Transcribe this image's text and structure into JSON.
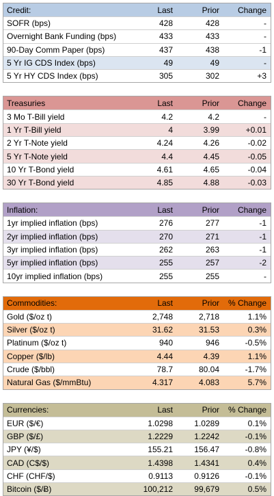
{
  "sections": [
    {
      "header": [
        "Credit:",
        "Last",
        "Prior",
        "Change"
      ],
      "rows": [
        [
          "SOFR (bps)",
          "428",
          "428",
          "-"
        ],
        [
          "Overnight Bank Funding (bps)",
          "433",
          "433",
          "-"
        ],
        [
          "90-Day Comm Paper (bps)",
          "437",
          "438",
          "-1"
        ],
        [
          "5 Yr IG CDS Index (bps)",
          "49",
          "49",
          "-"
        ],
        [
          "5 Yr HY CDS Index (bps)",
          "305",
          "302",
          "+3"
        ]
      ]
    },
    {
      "header": [
        "Treasuries",
        "Last",
        "Prior",
        "Change"
      ],
      "rows": [
        [
          "3 Mo T-Bill yield",
          "4.2",
          "4.2",
          "-"
        ],
        [
          "1 Yr T-Bill yield",
          "4",
          "3.99",
          "+0.01"
        ],
        [
          "2 Yr T-Note yield",
          "4.24",
          "4.26",
          "-0.02"
        ],
        [
          "5 Yr T-Note yield",
          "4.4",
          "4.45",
          "-0.05"
        ],
        [
          "10 Yr T-Bond yield",
          "4.61",
          "4.65",
          "-0.04"
        ],
        [
          "30 Yr T-Bond yield",
          "4.85",
          "4.88",
          "-0.03"
        ]
      ]
    },
    {
      "header": [
        "Inflation:",
        "Last",
        "Prior",
        "Change"
      ],
      "rows": [
        [
          "1yr implied inflation (bps)",
          "276",
          "277",
          "-1"
        ],
        [
          "2yr implied inflation (bps)",
          "270",
          "271",
          "-1"
        ],
        [
          "3yr implied inflation (bps)",
          "262",
          "263",
          "-1"
        ],
        [
          "5yr implied inflation (bps)",
          "255",
          "257",
          "-2"
        ],
        [
          "10yr implied inflation (bps)",
          "255",
          "255",
          "-"
        ]
      ]
    },
    {
      "header": [
        "Commodities:",
        "Last",
        "Prior",
        "% Change"
      ],
      "rows": [
        [
          "Gold ($/oz t)",
          "2,748",
          "2,718",
          "1.1%"
        ],
        [
          "Silver ($/oz t)",
          "31.62",
          "31.53",
          "0.3%"
        ],
        [
          "Platinum ($/oz t)",
          "940",
          "946",
          "-0.5%"
        ],
        [
          "Copper ($/lb)",
          "4.44",
          "4.39",
          "1.1%"
        ],
        [
          "Crude ($/bbl)",
          "78.7",
          "80.04",
          "-1.7%"
        ],
        [
          "Natural Gas ($/mmBtu)",
          "4.317",
          "4.083",
          "5.7%"
        ]
      ]
    },
    {
      "header": [
        "Currencies:",
        "Last",
        "Prior",
        "% Change"
      ],
      "rows": [
        [
          "EUR ($/€)",
          "1.0298",
          "1.0289",
          "0.1%"
        ],
        [
          "GBP ($/£)",
          "1.2229",
          "1.2242",
          "-0.1%"
        ],
        [
          "JPY (¥/$)",
          "155.21",
          "156.47",
          "-0.8%"
        ],
        [
          "CAD (C$/$)",
          "1.4398",
          "1.4341",
          "0.4%"
        ],
        [
          "CHF (CHF/$)",
          "0.9113",
          "0.9126",
          "-0.1%"
        ],
        [
          "Bitcoin ($/Ƀ)",
          "100,212",
          "99,679",
          "0.5%"
        ]
      ]
    }
  ]
}
